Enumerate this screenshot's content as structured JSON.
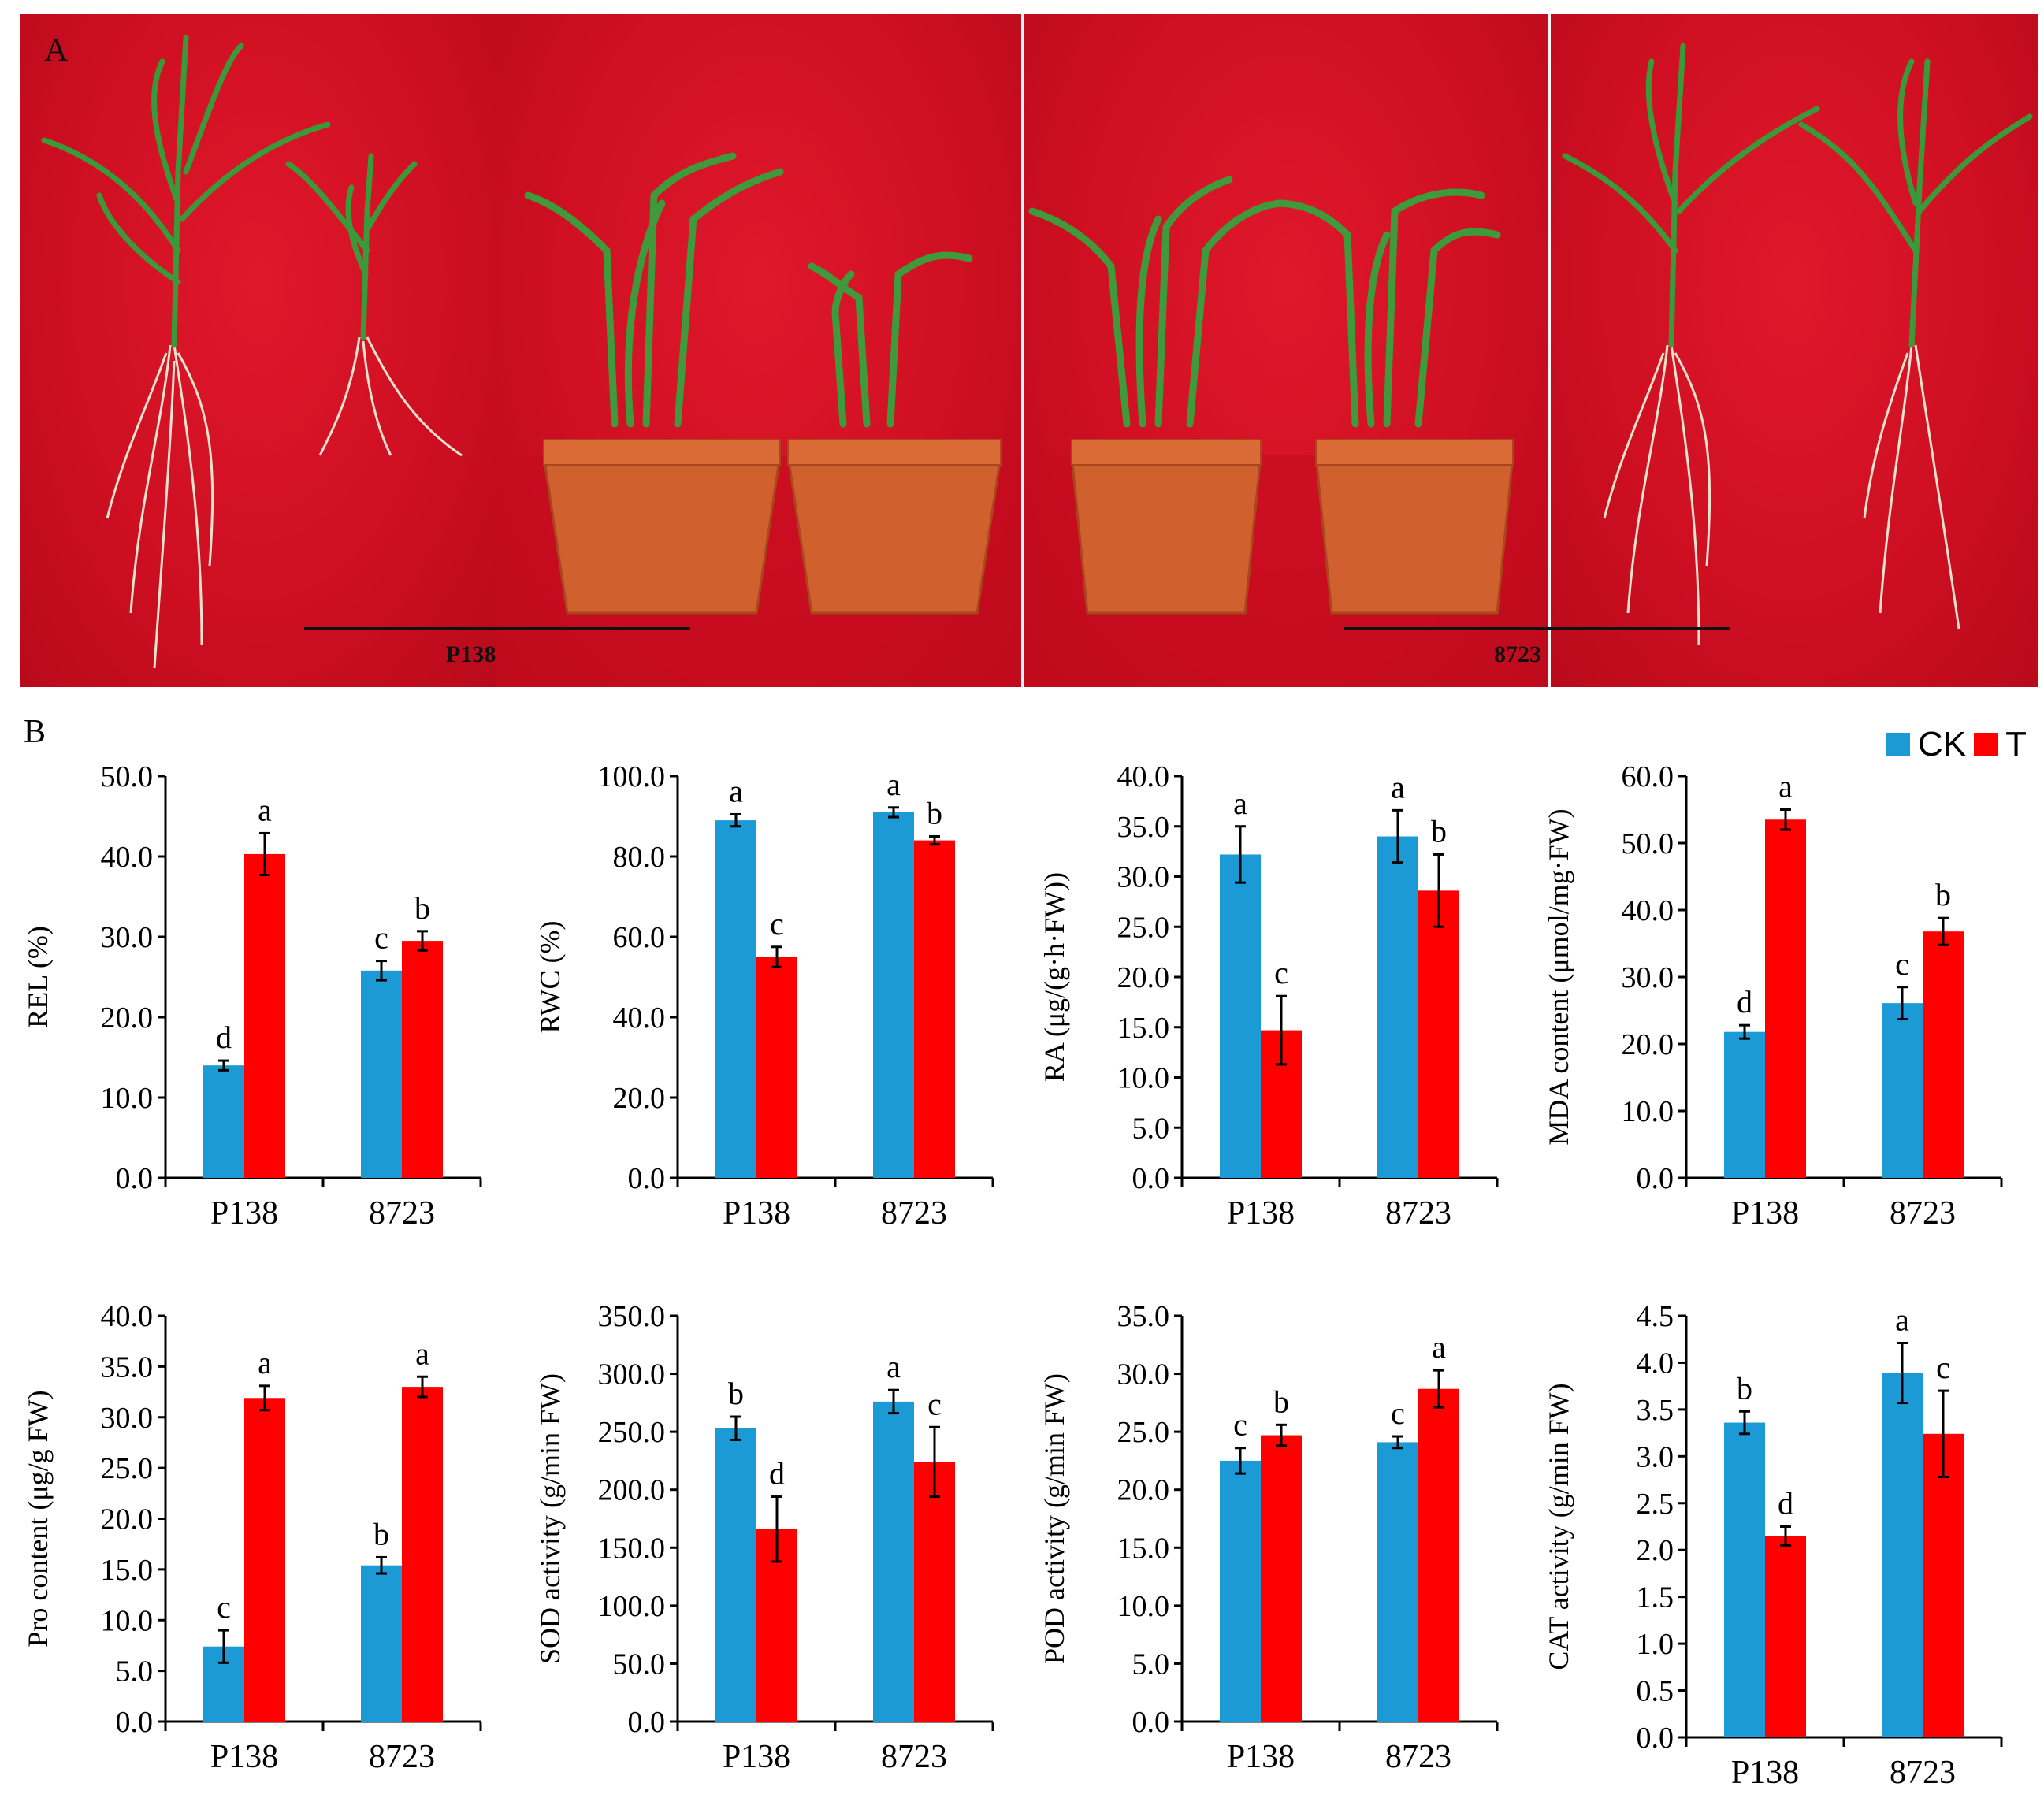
{
  "panel_a": {
    "letter": "A",
    "labels": [
      "P138",
      "8723"
    ]
  },
  "panel_b": {
    "letter": "B",
    "legend": [
      {
        "name": "CK",
        "color": "#1c9ad6"
      },
      {
        "name": "T",
        "color": "#ff0000"
      }
    ]
  },
  "colors": {
    "ck": "#1c9ad6",
    "t": "#ff0000"
  },
  "chart_data": [
    {
      "type": "bar",
      "ylabel": "REL (%)",
      "categories": [
        "P138",
        "8723"
      ],
      "ylim": [
        0,
        50
      ],
      "ticks": [
        "0.0",
        "10.0",
        "20.0",
        "30.0",
        "40.0",
        "50.0"
      ],
      "series": [
        {
          "name": "CK",
          "values": [
            14.0,
            25.8
          ],
          "errors": [
            0.6,
            1.2
          ],
          "letters": [
            "d",
            "c"
          ]
        },
        {
          "name": "T",
          "values": [
            40.3,
            29.5
          ],
          "errors": [
            2.6,
            1.2
          ],
          "letters": [
            "a",
            "b"
          ]
        }
      ]
    },
    {
      "type": "bar",
      "ylabel": "RWC (%)",
      "categories": [
        "P138",
        "8723"
      ],
      "ylim": [
        0,
        100
      ],
      "ticks": [
        "0.0",
        "20.0",
        "40.0",
        "60.0",
        "80.0",
        "100.0"
      ],
      "series": [
        {
          "name": "CK",
          "values": [
            89.0,
            91.0
          ],
          "errors": [
            1.5,
            1.2
          ],
          "letters": [
            "a",
            "a"
          ]
        },
        {
          "name": "T",
          "values": [
            55.0,
            84.0
          ],
          "errors": [
            2.5,
            1.0
          ],
          "letters": [
            "c",
            "b"
          ]
        }
      ]
    },
    {
      "type": "bar",
      "ylabel": "RA (μg/(g·h·FW))",
      "categories": [
        "P138",
        "8723"
      ],
      "ylim": [
        0,
        40
      ],
      "ticks": [
        "0.0",
        "5.0",
        "10.0",
        "15.0",
        "20.0",
        "25.0",
        "30.0",
        "35.0",
        "40.0"
      ],
      "series": [
        {
          "name": "CK",
          "values": [
            32.2,
            34.0
          ],
          "errors": [
            2.8,
            2.6
          ],
          "letters": [
            "a",
            "a"
          ]
        },
        {
          "name": "T",
          "values": [
            14.7,
            28.6
          ],
          "errors": [
            3.4,
            3.6
          ],
          "letters": [
            "c",
            "b"
          ]
        }
      ]
    },
    {
      "type": "bar",
      "ylabel": "MDA content (μmol/mg·FW)",
      "categories": [
        "P138",
        "8723"
      ],
      "ylim": [
        0,
        60
      ],
      "ticks": [
        "0.0",
        "10.0",
        "20.0",
        "30.0",
        "40.0",
        "50.0",
        "60.0"
      ],
      "series": [
        {
          "name": "CK",
          "values": [
            21.8,
            26.1
          ],
          "errors": [
            1.0,
            2.4
          ],
          "letters": [
            "d",
            "c"
          ]
        },
        {
          "name": "T",
          "values": [
            53.5,
            36.8
          ],
          "errors": [
            1.5,
            2.0
          ],
          "letters": [
            "a",
            "b"
          ]
        }
      ]
    },
    {
      "type": "bar",
      "ylabel": "Pro content (μg/g FW)",
      "categories": [
        "P138",
        "8723"
      ],
      "ylim": [
        0,
        40
      ],
      "ticks": [
        "0.0",
        "5.0",
        "10.0",
        "15.0",
        "20.0",
        "25.0",
        "30.0",
        "35.0",
        "40.0"
      ],
      "series": [
        {
          "name": "CK",
          "values": [
            7.4,
            15.4
          ],
          "errors": [
            1.6,
            0.8
          ],
          "letters": [
            "c",
            "b"
          ]
        },
        {
          "name": "T",
          "values": [
            31.9,
            33.0
          ],
          "errors": [
            1.2,
            1.0
          ],
          "letters": [
            "a",
            "a"
          ]
        }
      ]
    },
    {
      "type": "bar",
      "ylabel": "SOD activity (g/min FW)",
      "categories": [
        "P138",
        "8723"
      ],
      "ylim": [
        0,
        350
      ],
      "ticks": [
        "0.0",
        "50.0",
        "100.0",
        "150.0",
        "200.0",
        "250.0",
        "300.0",
        "350.0"
      ],
      "series": [
        {
          "name": "CK",
          "values": [
            253,
            276
          ],
          "errors": [
            10,
            10
          ],
          "letters": [
            "b",
            "a"
          ]
        },
        {
          "name": "T",
          "values": [
            166,
            224
          ],
          "errors": [
            28,
            30
          ],
          "letters": [
            "d",
            "c"
          ]
        }
      ]
    },
    {
      "type": "bar",
      "ylabel": "POD activity (g/min FW)",
      "categories": [
        "P138",
        "8723"
      ],
      "ylim": [
        0,
        35
      ],
      "ticks": [
        "0.0",
        "5.0",
        "10.0",
        "15.0",
        "20.0",
        "25.0",
        "30.0",
        "35.0"
      ],
      "series": [
        {
          "name": "CK",
          "values": [
            22.5,
            24.1
          ],
          "errors": [
            1.1,
            0.5
          ],
          "letters": [
            "c",
            "c"
          ]
        },
        {
          "name": "T",
          "values": [
            24.7,
            28.7
          ],
          "errors": [
            0.9,
            1.6
          ],
          "letters": [
            "b",
            "a"
          ]
        }
      ]
    },
    {
      "type": "bar",
      "ylabel": "CAT activity (g/min FW)",
      "categories": [
        "P138",
        "8723"
      ],
      "ylim": [
        0,
        4.5
      ],
      "ticks": [
        "0.0",
        "0.5",
        "1.0",
        "1.5",
        "2.0",
        "2.5",
        "3.0",
        "3.5",
        "4.0",
        "4.5"
      ],
      "series": [
        {
          "name": "CK",
          "values": [
            3.36,
            3.89
          ],
          "errors": [
            0.12,
            0.32
          ],
          "letters": [
            "b",
            "a"
          ]
        },
        {
          "name": "T",
          "values": [
            2.15,
            3.24
          ],
          "errors": [
            0.1,
            0.46
          ],
          "letters": [
            "d",
            "c"
          ]
        }
      ]
    }
  ]
}
